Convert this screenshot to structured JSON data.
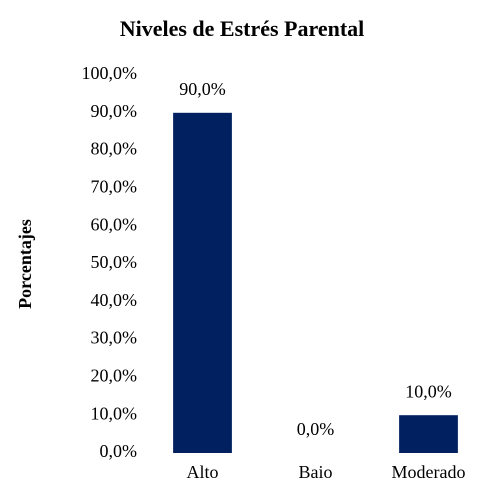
{
  "chart_data": {
    "type": "bar",
    "title": "Niveles de Estrés Parental",
    "y_label": "Porcentajes",
    "categories": [
      "Alto",
      "Baio",
      "Moderado"
    ],
    "values": [
      90,
      0,
      10
    ],
    "value_labels": [
      "90,0%",
      "0,0%",
      "10,0%"
    ],
    "color": "#002060",
    "ylim": [
      0,
      100
    ],
    "yticks": [
      {
        "value": 0,
        "label": "0,0%"
      },
      {
        "value": 10,
        "label": "10,0%"
      },
      {
        "value": 20,
        "label": "20,0%"
      },
      {
        "value": 30,
        "label": "30,0%"
      },
      {
        "value": 40,
        "label": "40,0%"
      },
      {
        "value": 50,
        "label": "50,0%"
      },
      {
        "value": 60,
        "label": "60,0%"
      },
      {
        "value": 70,
        "label": "70,0%"
      },
      {
        "value": 80,
        "label": "80,0%"
      },
      {
        "value": 90,
        "label": "90,0%"
      },
      {
        "value": 100,
        "label": "100,0%"
      }
    ],
    "grid": false
  }
}
